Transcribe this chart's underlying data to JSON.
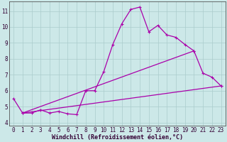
{
  "background_color": "#cce8e8",
  "line_color": "#aa00aa",
  "grid_color": "#aacccc",
  "xlabel": "Windchill (Refroidissement éolien,°C)",
  "xlabel_fontsize": 6.0,
  "tick_fontsize": 5.5,
  "xlim": [
    -0.5,
    23.5
  ],
  "ylim": [
    3.8,
    11.6
  ],
  "yticks": [
    4,
    5,
    6,
    7,
    8,
    9,
    10,
    11
  ],
  "xticks": [
    0,
    1,
    2,
    3,
    4,
    5,
    6,
    7,
    8,
    9,
    10,
    11,
    12,
    13,
    14,
    15,
    16,
    17,
    18,
    19,
    20,
    21,
    22,
    23
  ],
  "line1_x": [
    0,
    1,
    2,
    3,
    4,
    5,
    6,
    7,
    8,
    9,
    10,
    11,
    12,
    13,
    14,
    15,
    16,
    17,
    18,
    19,
    20,
    21,
    22,
    23
  ],
  "line1_y": [
    5.5,
    4.6,
    4.6,
    4.8,
    4.6,
    4.7,
    4.55,
    4.5,
    6.0,
    6.0,
    7.2,
    8.9,
    10.2,
    11.1,
    11.25,
    9.7,
    10.1,
    9.5,
    9.35,
    8.9,
    8.5,
    7.1,
    6.85,
    6.3
  ],
  "line2_x": [
    1,
    23
  ],
  "line2_y": [
    4.6,
    6.3
  ],
  "line3_x": [
    1,
    20
  ],
  "line3_y": [
    4.6,
    8.5
  ]
}
